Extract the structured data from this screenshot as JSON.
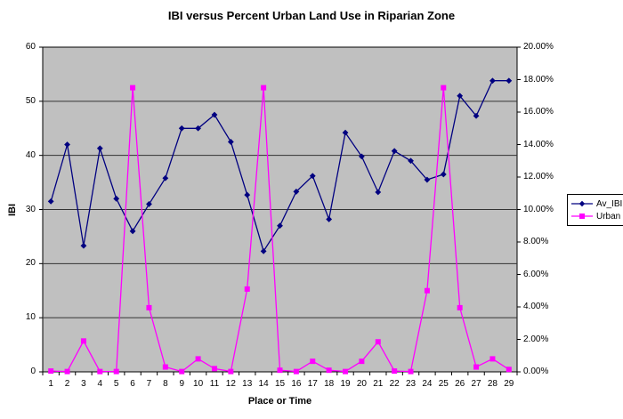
{
  "title": "IBI versus Percent Urban Land Use in Riparian Zone",
  "chart_data": {
    "type": "line",
    "title": "IBI versus Percent Urban Land Use in Riparian Zone",
    "xlabel": "Place or Time",
    "ylabel_left": "IBI",
    "categories": [
      "1",
      "2",
      "3",
      "4",
      "5",
      "6",
      "7",
      "8",
      "9",
      "10",
      "11",
      "12",
      "13",
      "14",
      "15",
      "16",
      "17",
      "18",
      "19",
      "20",
      "21",
      "22",
      "23",
      "24",
      "25",
      "26",
      "27",
      "28",
      "29"
    ],
    "series": [
      {
        "name": "Av_IBI",
        "axis": "left",
        "color": "#000080",
        "marker": "diamond",
        "values": [
          31.5,
          42,
          23.3,
          41.3,
          32,
          26,
          31,
          35.8,
          45,
          45,
          47.5,
          42.5,
          32.7,
          22.3,
          27,
          33.3,
          36.2,
          28.2,
          44.2,
          39.8,
          33.2,
          40.8,
          39,
          35.5,
          36.5,
          51,
          47.3,
          53.8,
          53.8
        ]
      },
      {
        "name": "Urban",
        "axis": "right",
        "color": "#FF00FF",
        "marker": "square",
        "values": [
          0.05,
          0.02,
          1.9,
          0.02,
          0.02,
          17.5,
          3.95,
          0.3,
          0.02,
          0.8,
          0.2,
          0.02,
          5.1,
          17.5,
          0.1,
          0.02,
          0.65,
          0.1,
          0.02,
          0.65,
          1.85,
          0.05,
          0.02,
          5.0,
          17.5,
          3.95,
          0.3,
          0.8,
          0.15
        ]
      }
    ],
    "left_axis": {
      "min": 0,
      "max": 60,
      "step": 10
    },
    "right_axis": {
      "min": 0,
      "max": 20,
      "step": 2,
      "decimals": 2,
      "suffix": "%"
    },
    "grid": true,
    "legend_position": "right",
    "plot_bg_color": "#C0C0C0",
    "grid_color": "#333333",
    "axis_color": "#000000"
  },
  "legend": {
    "items": [
      "Av_IBI",
      "Urban"
    ]
  }
}
